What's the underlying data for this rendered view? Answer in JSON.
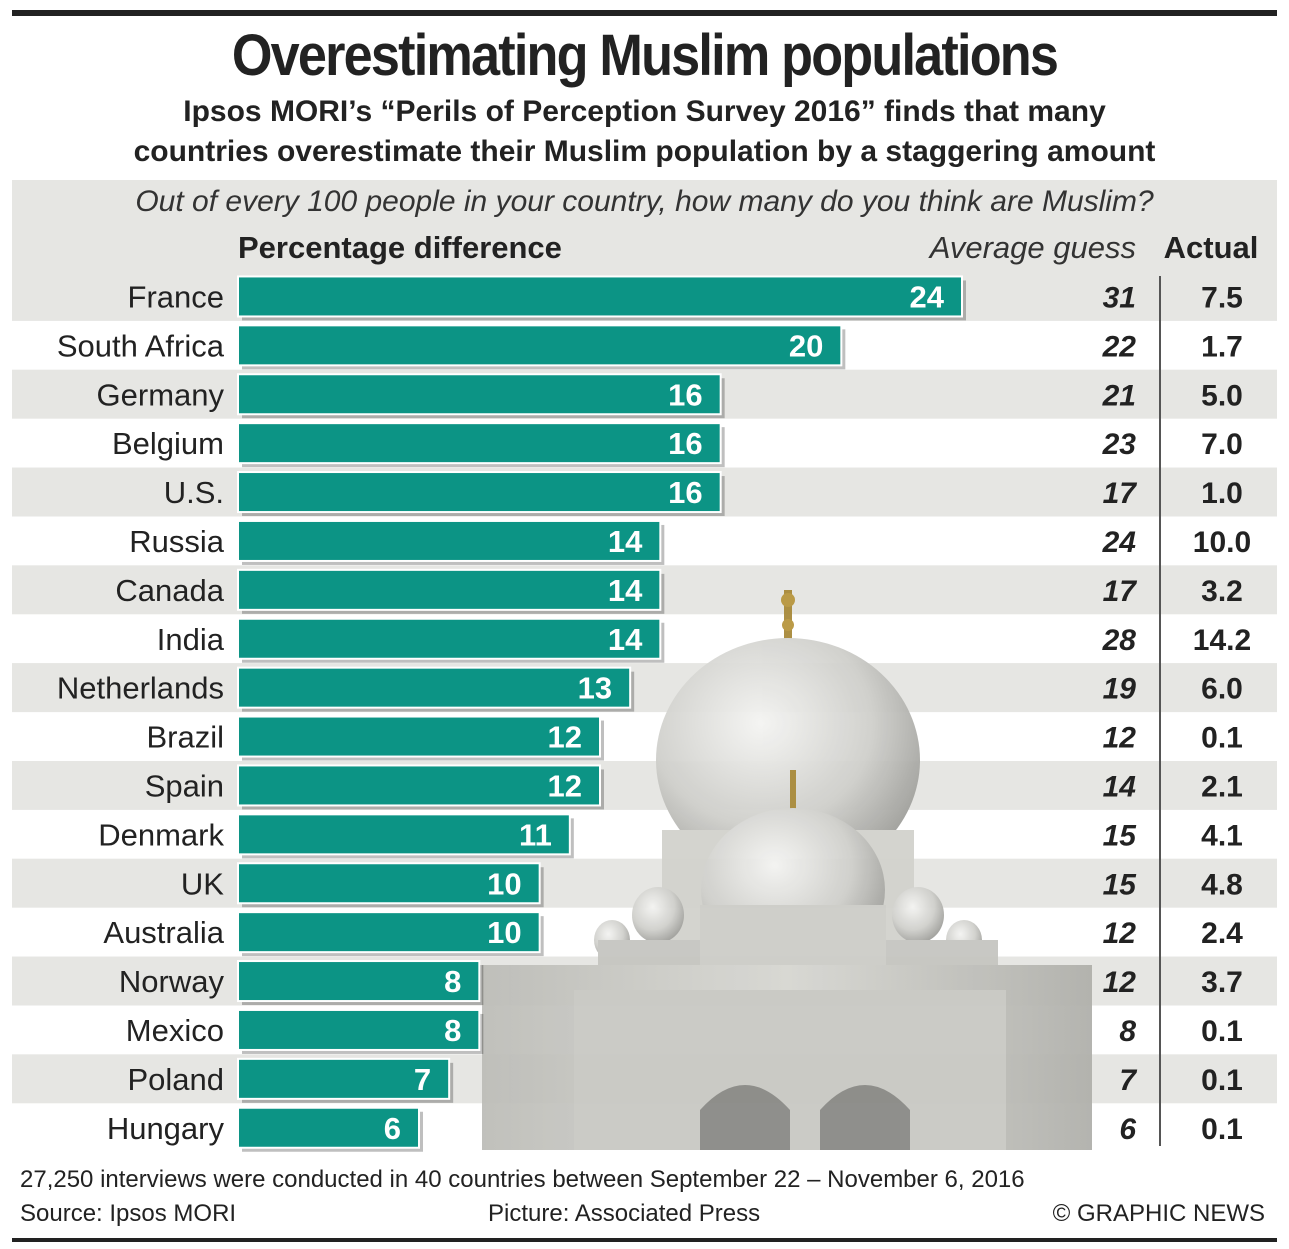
{
  "title": "Overestimating Muslim populations",
  "subtitle_line1": "Ipsos MORI’s “Perils of Perception Survey 2016” finds that many",
  "subtitle_line2": "countries overestimate their Muslim population by a staggering amount",
  "question": "Out of every 100 people in your country, how many do you think are Muslim?",
  "headers": {
    "difference": "Percentage difference",
    "average_guess": "Average guess",
    "actual": "Actual"
  },
  "colors": {
    "bar": "#0c9485",
    "panel": "#e6e6e3",
    "text": "#222222"
  },
  "chart_data": {
    "type": "bar",
    "orientation": "horizontal",
    "title": "Overestimating Muslim populations",
    "xlabel": "Percentage difference",
    "categories": [
      "France",
      "South Africa",
      "Germany",
      "Belgium",
      "U.S.",
      "Russia",
      "Canada",
      "India",
      "Netherlands",
      "Brazil",
      "Spain",
      "Denmark",
      "UK",
      "Australia",
      "Norway",
      "Mexico",
      "Poland",
      "Hungary"
    ],
    "values": [
      24,
      20,
      16,
      16,
      16,
      14,
      14,
      14,
      13,
      12,
      12,
      11,
      10,
      10,
      8,
      8,
      7,
      6
    ],
    "average_guess": [
      "31",
      "22",
      "21",
      "23",
      "17",
      "24",
      "17",
      "28",
      "19",
      "12",
      "14",
      "15",
      "15",
      "12",
      "12",
      "8",
      "7",
      "6"
    ],
    "actual": [
      "7.5",
      "1.7",
      "5.0",
      "7.0",
      "1.0",
      "10.0",
      "3.2",
      "14.2",
      "6.0",
      "0.1",
      "2.1",
      "4.1",
      "4.8",
      "2.4",
      "3.7",
      "0.1",
      "0.1",
      "0.1"
    ],
    "xlim": [
      0,
      24
    ]
  },
  "footer": {
    "note": "27,250 interviews were conducted in 40 countries between September 22 – November 6, 2016",
    "source": "Source: Ipsos MORI",
    "picture": "Picture: Associated Press",
    "credit": "© GRAPHIC NEWS"
  }
}
